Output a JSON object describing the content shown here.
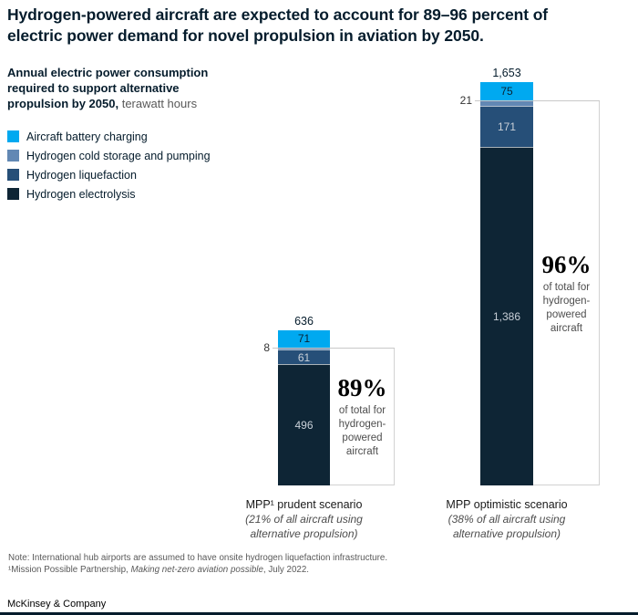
{
  "title": {
    "line1": "Hydrogen-powered aircraft are expected to account for 89–96 percent of",
    "line2": "electric power demand for novel propulsion in aviation by 2050."
  },
  "subtitle": {
    "line1": "Annual electric power consumption",
    "line2": "required to support alternative",
    "line3_bold": "propulsion by 2050,",
    "unit": " terawatt hours"
  },
  "legend": [
    {
      "key": "battery",
      "label": "Aircraft battery charging",
      "color": "#00A9F0"
    },
    {
      "key": "cold_storage",
      "label": "Hydrogen cold storage and pumping",
      "color": "#6288B4"
    },
    {
      "key": "liquefaction",
      "label": "Hydrogen liquefaction",
      "color": "#264F78"
    },
    {
      "key": "electrolysis",
      "label": "Hydrogen electrolysis",
      "color": "#0E2535"
    }
  ],
  "chart_data": {
    "type": "bar",
    "variant": "stacked",
    "unit": "terawatt hours",
    "categories": [
      "MPP¹ prudent scenario",
      "MPP optimistic scenario"
    ],
    "bars": [
      {
        "name": "MPP¹ prudent scenario",
        "sub": "(21% of all aircraft using alternative propulsion)",
        "total": 636,
        "total_label": "636",
        "segments": [
          {
            "key": "battery",
            "value": 71,
            "label": "71"
          },
          {
            "key": "cold_storage",
            "value": 8,
            "label": "8",
            "label_outside": true
          },
          {
            "key": "liquefaction",
            "value": 61,
            "label": "61"
          },
          {
            "key": "electrolysis",
            "value": 496,
            "label": "496"
          }
        ],
        "annotation": {
          "percent": "89%",
          "caption_lines": [
            "of total for",
            "hydrogen-",
            "powered",
            "aircraft"
          ]
        }
      },
      {
        "name": "MPP optimistic scenario",
        "sub": "(38% of all aircraft using alternative propulsion)",
        "total": 1653,
        "total_label": "1,653",
        "segments": [
          {
            "key": "battery",
            "value": 75,
            "label": "75"
          },
          {
            "key": "cold_storage",
            "value": 21,
            "label": "21",
            "label_outside": true
          },
          {
            "key": "liquefaction",
            "value": 171,
            "label": "171"
          },
          {
            "key": "electrolysis",
            "value": 1386,
            "label": "1,386"
          }
        ],
        "annotation": {
          "percent": "96%",
          "caption_lines": [
            "of total for",
            "hydrogen-",
            "powered",
            "aircraft"
          ]
        }
      }
    ]
  },
  "footnotes": {
    "note": "Note: International hub airports are assumed to have onsite hydrogen liquefaction infrastructure.",
    "source_prefix": "¹Mission Possible Partnership, ",
    "source_italic": "Making net-zero aviation possible",
    "source_suffix": ", July 2022."
  },
  "logo": "McKinsey & Company",
  "colors": {
    "title_text": "#051C2C",
    "unit_text": "#595959",
    "caption_text": "#4D4D4D",
    "line_gray": "#C8C8C8",
    "box_border": "#D2D2D2",
    "bottom_bar": "#051C2C"
  }
}
